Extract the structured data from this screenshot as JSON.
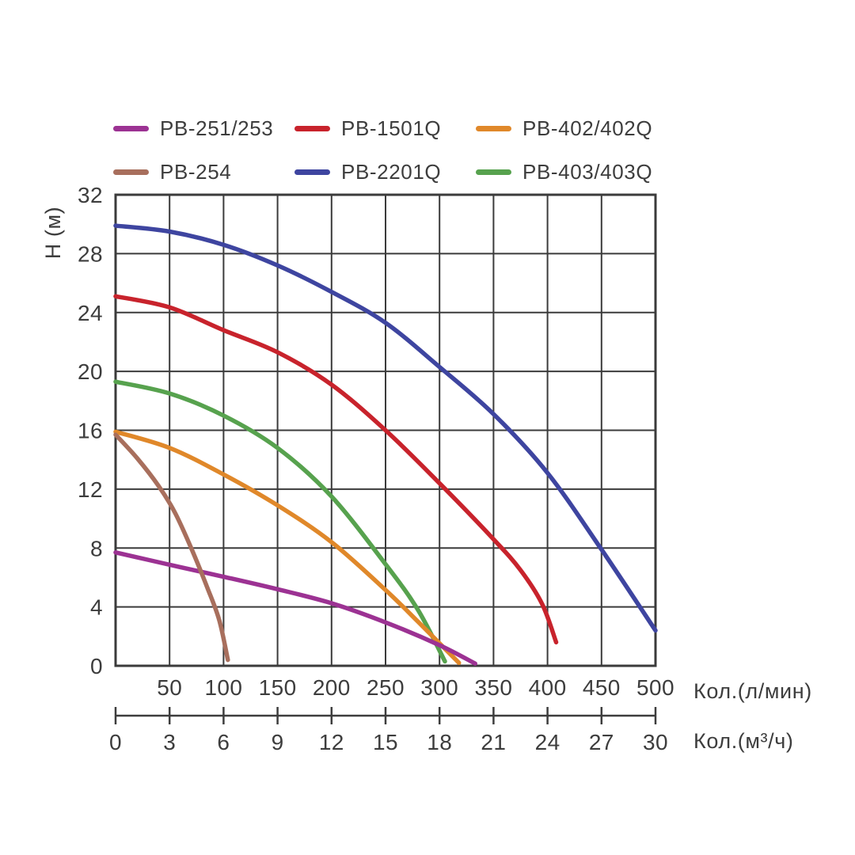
{
  "chart_data": {
    "type": "line",
    "title": "",
    "grid": true,
    "legend_position": "top",
    "text_color": "#3d3d3d",
    "grid_color": "#3b3b3b",
    "y_axis": {
      "label": "Н (м)",
      "range": [
        0,
        32
      ],
      "ticks": [
        0,
        4,
        8,
        12,
        16,
        20,
        24,
        28,
        32
      ]
    },
    "x_axis_primary": {
      "label": "Кол.(л/мин)",
      "range": [
        0,
        500
      ],
      "ticks": [
        50,
        100,
        150,
        200,
        250,
        300,
        350,
        400,
        450,
        500
      ]
    },
    "x_axis_secondary": {
      "label": "Кол.(м³/ч)",
      "range": [
        0,
        30
      ],
      "ticks": [
        0,
        3,
        6,
        9,
        12,
        15,
        18,
        21,
        24,
        27,
        30
      ]
    },
    "series": [
      {
        "name": "PB-251/253",
        "color": "#9C3293",
        "points": [
          [
            0,
            7.7
          ],
          [
            30,
            7.2
          ],
          [
            60,
            6.7
          ],
          [
            100,
            6.05
          ],
          [
            150,
            5.2
          ],
          [
            200,
            4.25
          ],
          [
            250,
            2.95
          ],
          [
            300,
            1.4
          ],
          [
            333,
            0.15
          ]
        ]
      },
      {
        "name": "PB-1501Q",
        "color": "#C8232C",
        "points": [
          [
            0,
            25.1
          ],
          [
            50,
            24.35
          ],
          [
            100,
            22.8
          ],
          [
            150,
            21.3
          ],
          [
            200,
            19.1
          ],
          [
            250,
            16.0
          ],
          [
            300,
            12.4
          ],
          [
            350,
            8.6
          ],
          [
            375,
            6.5
          ],
          [
            395,
            4.2
          ],
          [
            408,
            1.6
          ]
        ]
      },
      {
        "name": "PB-402/402Q",
        "color": "#E0882A",
        "points": [
          [
            0,
            15.9
          ],
          [
            50,
            14.8
          ],
          [
            100,
            13.0
          ],
          [
            150,
            10.9
          ],
          [
            200,
            8.4
          ],
          [
            250,
            5.15
          ],
          [
            280,
            3.0
          ],
          [
            318,
            0.2
          ]
        ]
      },
      {
        "name": "PB-254",
        "color": "#A86F5D",
        "points": [
          [
            0,
            15.7
          ],
          [
            20,
            14.1
          ],
          [
            40,
            12.2
          ],
          [
            55,
            10.4
          ],
          [
            70,
            8.0
          ],
          [
            85,
            5.3
          ],
          [
            96,
            3.1
          ],
          [
            104,
            0.4
          ]
        ]
      },
      {
        "name": "PB-2201Q",
        "color": "#3E45A0",
        "points": [
          [
            0,
            29.9
          ],
          [
            50,
            29.5
          ],
          [
            100,
            28.6
          ],
          [
            150,
            27.2
          ],
          [
            200,
            25.4
          ],
          [
            250,
            23.3
          ],
          [
            300,
            20.3
          ],
          [
            350,
            17.1
          ],
          [
            400,
            13.1
          ],
          [
            450,
            7.9
          ],
          [
            500,
            2.4
          ]
        ]
      },
      {
        "name": "PB-403/403Q",
        "color": "#57A24E",
        "points": [
          [
            0,
            19.3
          ],
          [
            50,
            18.5
          ],
          [
            100,
            17.0
          ],
          [
            150,
            14.8
          ],
          [
            200,
            11.5
          ],
          [
            250,
            6.9
          ],
          [
            280,
            3.8
          ],
          [
            305,
            0.3
          ]
        ]
      }
    ]
  }
}
